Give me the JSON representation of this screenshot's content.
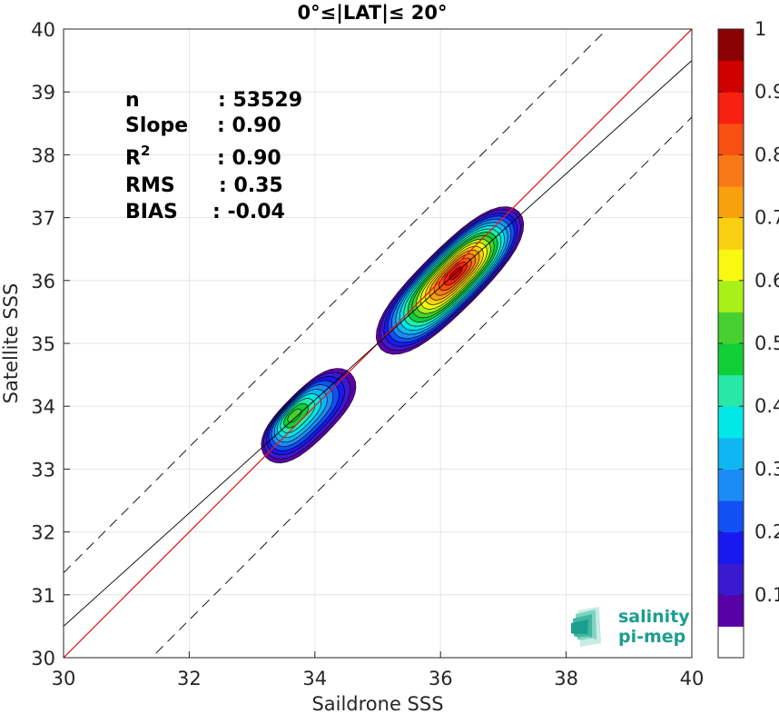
{
  "chart_data": {
    "type": "heatmap",
    "title": "0°≤|LAT|≤ 20°",
    "xlabel": "Saildrone SSS",
    "ylabel": "Satellite SSS",
    "xlim": [
      30,
      40
    ],
    "ylim": [
      30,
      40
    ],
    "xticks": [
      "30",
      "32",
      "34",
      "36",
      "38",
      "40"
    ],
    "yticks": [
      "30",
      "31",
      "32",
      "33",
      "34",
      "35",
      "36",
      "37",
      "38",
      "39",
      "40"
    ],
    "grid": true,
    "stats": {
      "n_label": "n",
      "n_value": ": 53529",
      "slope_label": "Slope",
      "slope_value": ": 0.90",
      "r2_label": "R",
      "r2_sup": "2",
      "r2_value": ": 0.90",
      "rms_label": "RMS",
      "rms_value": ": 0.35",
      "bias_label": "BIAS",
      "bias_value": ": -0.04"
    },
    "lines": [
      {
        "name": "identity",
        "color": "#e41a1c",
        "style": "solid",
        "slope": 1,
        "intercept": 0
      },
      {
        "name": "fit",
        "color": "#000000",
        "style": "solid",
        "slope": 0.9,
        "intercept": 3.5
      },
      {
        "name": "upper-bound",
        "color": "#000000",
        "style": "dashed",
        "slope": 1,
        "intercept": 1.35
      },
      {
        "name": "lower-bound",
        "color": "#000000",
        "style": "dashed",
        "slope": 1,
        "intercept": -1.4
      }
    ],
    "density_clusters": [
      {
        "center": [
          33.9,
          33.85
        ],
        "peak": 0.55
      },
      {
        "center": [
          36.15,
          36.0
        ],
        "peak": 0.95
      }
    ],
    "colorbar": {
      "ticks": [
        "0.1",
        "0.2",
        "0.3",
        "0.4",
        "0.5",
        "0.6",
        "0.7",
        "0.8",
        "0.9",
        "1"
      ],
      "colors": [
        "#ffffff",
        "#5a00a8",
        "#3a1ad0",
        "#1818f0",
        "#1050f5",
        "#1c8cf5",
        "#10b6f2",
        "#00e8e8",
        "#28e8a8",
        "#10cf38",
        "#48d030",
        "#a8f018",
        "#f8f810",
        "#f8d010",
        "#f8a010",
        "#f87818",
        "#f85010",
        "#f82010",
        "#d00000",
        "#8b0000"
      ]
    }
  },
  "logo": {
    "line1": "salinity",
    "line2": "pi-mep",
    "color": "#1b9e8f"
  }
}
